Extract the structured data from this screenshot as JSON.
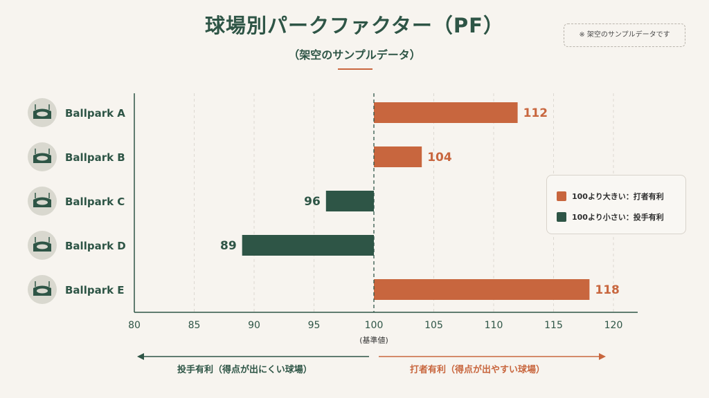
{
  "header": {
    "title": "球場別パークファクター（PF）",
    "subtitle": "（架空のサンプルデータ）",
    "note": "※ 架空のサンプルデータです"
  },
  "legend": {
    "items": [
      {
        "label": "100より大きい：打者有利",
        "color": "#c8663e"
      },
      {
        "label": "100より小さい：投手有利",
        "color": "#2e5546"
      }
    ]
  },
  "bottom": {
    "left_label": "投手有利（得点が出にくい球場）",
    "right_label": "打者有利（得点が出やすい球場）"
  },
  "colors": {
    "hitter": "#c8663e",
    "pitcher": "#2e5546",
    "icon_bg": "#d9d8cf",
    "axis": "#2e5546",
    "grid": "#dcd8d1"
  },
  "chart_data": {
    "type": "bar",
    "orientation": "horizontal",
    "categories": [
      "Ballpark A",
      "Ballpark B",
      "Ballpark C",
      "Ballpark D",
      "Ballpark E"
    ],
    "values": [
      112,
      104,
      96,
      89,
      118
    ],
    "data_labels": [
      "112",
      "104",
      "96",
      "89",
      "118"
    ],
    "baseline": 100,
    "baseline_label": "(基準値)",
    "xlim": [
      80,
      120
    ],
    "xticks": [
      80,
      85,
      90,
      95,
      100,
      105,
      110,
      115,
      120
    ],
    "xtick_labels": [
      "80",
      "85",
      "90",
      "95",
      "100",
      "105",
      "110",
      "115",
      "120"
    ],
    "grid": "vertical dashed",
    "legend_position": "right",
    "icons": [
      "stadium-icon",
      "stadium-icon",
      "stadium-icon",
      "stadium-icon",
      "stadium-icon"
    ]
  }
}
